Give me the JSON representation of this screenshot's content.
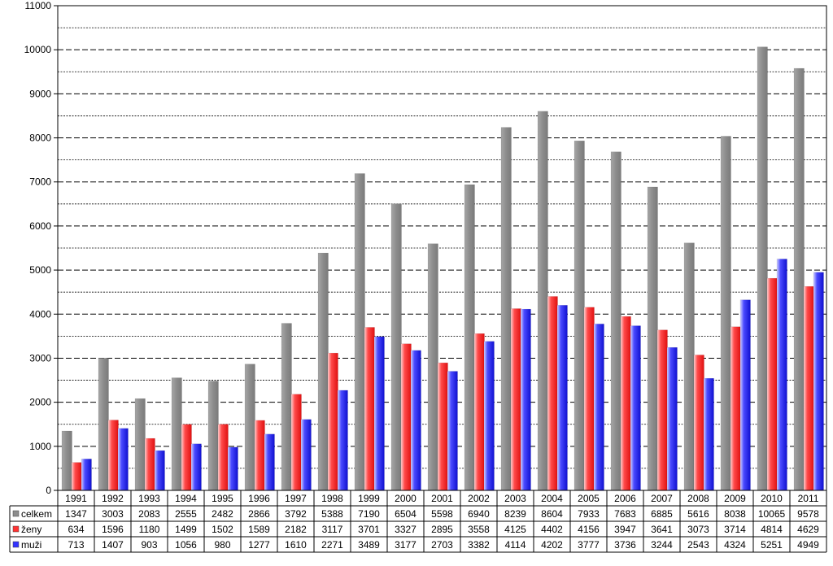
{
  "chart_data": {
    "type": "bar",
    "title": "",
    "xlabel": "",
    "ylabel": "",
    "ylim": [
      0,
      11000
    ],
    "yticks": [
      0,
      1000,
      2000,
      3000,
      4000,
      5000,
      6000,
      7000,
      8000,
      9000,
      10000,
      11000
    ],
    "grid": true,
    "legend": "data-table-left",
    "categories": [
      "1991",
      "1992",
      "1993",
      "1994",
      "1995",
      "1996",
      "1997",
      "1998",
      "1999",
      "2000",
      "2001",
      "2002",
      "2003",
      "2004",
      "2005",
      "2006",
      "2007",
      "2008",
      "2009",
      "2010",
      "2011"
    ],
    "series": [
      {
        "name": "celkem",
        "color": "#8c8c8c",
        "values": [
          1347,
          3003,
          2083,
          2555,
          2482,
          2866,
          3792,
          5388,
          7190,
          6504,
          5598,
          6940,
          8239,
          8604,
          7933,
          7683,
          6885,
          5616,
          8038,
          10065,
          9578
        ]
      },
      {
        "name": "ženy",
        "color": "#ff3333",
        "values": [
          634,
          1596,
          1180,
          1499,
          1502,
          1589,
          2182,
          3117,
          3701,
          3327,
          2895,
          3558,
          4125,
          4402,
          4156,
          3947,
          3641,
          3073,
          3714,
          4814,
          4629
        ]
      },
      {
        "name": "muži",
        "color": "#3333ff",
        "values": [
          713,
          1407,
          903,
          1056,
          980,
          1277,
          1610,
          2271,
          3489,
          3177,
          2703,
          3382,
          4114,
          4202,
          3777,
          3736,
          3244,
          2543,
          4324,
          5251,
          4949
        ]
      }
    ]
  }
}
